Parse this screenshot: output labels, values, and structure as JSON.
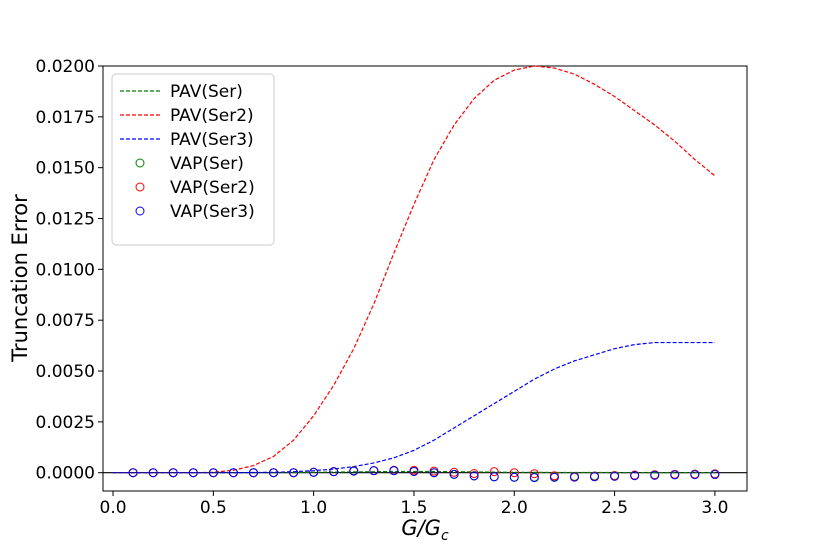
{
  "chart_data": {
    "type": "line",
    "title": "",
    "xlabel": "G/G_c",
    "xlabel_main": "G/G",
    "xlabel_sub": "c",
    "ylabel": "Truncation Error",
    "xlim": [
      -0.05,
      3.16
    ],
    "ylim": [
      -0.0009,
      0.02
    ],
    "x_ticks": [
      0.0,
      0.5,
      1.0,
      1.5,
      2.0,
      2.5,
      3.0
    ],
    "x_tick_labels": [
      "0.0",
      "0.5",
      "1.0",
      "1.5",
      "2.0",
      "2.5",
      "3.0"
    ],
    "y_ticks": [
      0.0,
      0.0025,
      0.005,
      0.0075,
      0.01,
      0.0125,
      0.015,
      0.0175,
      0.02
    ],
    "y_tick_labels": [
      "0.0000",
      "0.0025",
      "0.0050",
      "0.0075",
      "0.0100",
      "0.0125",
      "0.0150",
      "0.0175",
      "0.0200"
    ],
    "zero_line": true,
    "grid": false,
    "legend_position": "top-left",
    "x": [
      0.1,
      0.2,
      0.3,
      0.4,
      0.5,
      0.6,
      0.7,
      0.8,
      0.9,
      1.0,
      1.1,
      1.2,
      1.3,
      1.4,
      1.5,
      1.6,
      1.7,
      1.8,
      1.9,
      2.0,
      2.1,
      2.2,
      2.3,
      2.4,
      2.5,
      2.6,
      2.7,
      2.8,
      2.9,
      3.0
    ],
    "series": [
      {
        "name": "PAV(Ser)",
        "kind": "dashed-line",
        "color": "#008000",
        "values": [
          0,
          0,
          0,
          0,
          0,
          0,
          0,
          0,
          1e-05,
          2e-05,
          3e-05,
          4e-05,
          5e-05,
          6e-05,
          6e-05,
          6e-05,
          5e-05,
          4e-05,
          3e-05,
          2e-05,
          2e-05,
          1e-05,
          1e-05,
          1e-05,
          1e-05,
          0,
          0,
          0,
          0,
          0
        ]
      },
      {
        "name": "PAV(Ser2)",
        "kind": "dashed-line",
        "color": "#ff0000",
        "values": [
          0,
          0,
          0,
          0,
          2e-05,
          0.00012,
          0.00035,
          0.0008,
          0.0016,
          0.0028,
          0.0043,
          0.0061,
          0.0083,
          0.0108,
          0.0132,
          0.0154,
          0.0171,
          0.0184,
          0.0193,
          0.0198,
          0.02,
          0.0199,
          0.0196,
          0.0191,
          0.0185,
          0.0178,
          0.0171,
          0.0163,
          0.0154,
          0.0146
        ]
      },
      {
        "name": "PAV(Ser3)",
        "kind": "dashed-line",
        "color": "#0000ff",
        "values": [
          0,
          0,
          0,
          0,
          0,
          0,
          1e-05,
          2e-05,
          5e-05,
          0.0001,
          0.00018,
          0.0003,
          0.00048,
          0.00073,
          0.0011,
          0.0016,
          0.0022,
          0.0028,
          0.0034,
          0.004,
          0.0046,
          0.0051,
          0.0055,
          0.0058,
          0.0061,
          0.0063,
          0.0064,
          0.0064,
          0.0064,
          0.0064
        ]
      },
      {
        "name": "VAP(Ser)",
        "kind": "markers",
        "color": "#008000",
        "values": [
          0,
          0,
          0,
          0,
          0,
          0,
          0,
          0,
          0,
          2e-05,
          5e-05,
          0.0001,
          0.0001,
          0.0001,
          6e-05,
          0,
          -8e-05,
          -0.00015,
          -0.0002,
          -0.00022,
          -0.00022,
          -0.0002,
          -0.00018,
          -0.00016,
          -0.00014,
          -0.00012,
          -0.0001,
          -8e-05,
          -7e-05,
          -6e-05
        ]
      },
      {
        "name": "VAP(Ser2)",
        "kind": "markers",
        "color": "#ff0000",
        "values": [
          0,
          0,
          0,
          0,
          0,
          0,
          0,
          0,
          0,
          2e-05,
          5e-05,
          8e-05,
          0.0001,
          0.00012,
          0.00012,
          8e-05,
          2e-05,
          -4e-05,
          5e-05,
          0,
          -5e-05,
          -0.00015,
          -0.0002,
          -0.00018,
          -0.00015,
          -0.00012,
          -0.0001,
          -8e-05,
          -7e-05,
          -6e-05
        ]
      },
      {
        "name": "VAP(Ser3)",
        "kind": "markers",
        "color": "#0000ff",
        "values": [
          0,
          0,
          0,
          0,
          0,
          0,
          0,
          0,
          0,
          2e-05,
          5e-05,
          8e-05,
          0.0001,
          0.0001,
          6e-05,
          0,
          -8e-05,
          -0.00016,
          -0.0002,
          -0.00023,
          -0.00024,
          -0.00023,
          -0.00022,
          -0.0002,
          -0.00018,
          -0.00015,
          -0.00013,
          -0.00011,
          -0.0001,
          -9e-05
        ]
      }
    ]
  }
}
